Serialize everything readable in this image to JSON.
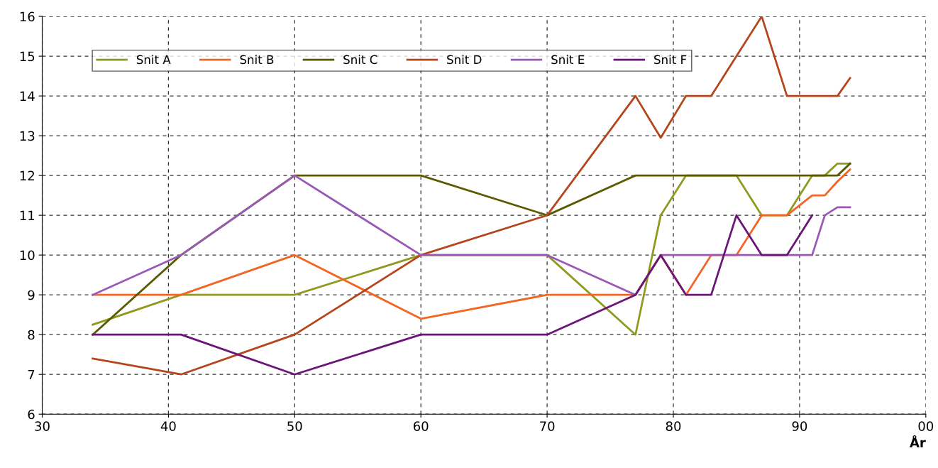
{
  "chart_data": {
    "type": "line",
    "xlabel": "År",
    "xlim": [
      "1930",
      "2000"
    ],
    "ylim": [
      6,
      16
    ],
    "xticks": [
      {
        "value": "1930",
        "label": "30"
      },
      {
        "value": "1940",
        "label": "40"
      },
      {
        "value": "1950",
        "label": "50"
      },
      {
        "value": "1960",
        "label": "60"
      },
      {
        "value": "1970",
        "label": "70"
      },
      {
        "value": "1980",
        "label": "80"
      },
      {
        "value": "1990",
        "label": "90"
      },
      {
        "value": "2000",
        "label": "00"
      }
    ],
    "yticks": [
      6,
      7,
      8,
      9,
      10,
      11,
      12,
      13,
      14,
      15,
      16
    ],
    "grid": true,
    "legend": "top left",
    "marker": "none",
    "line_style": "solid",
    "series": [
      {
        "name": "Snit A",
        "color": "#8f9a1e",
        "x": [
          "1934",
          "1941",
          "1950",
          "1960",
          "1970",
          "1977",
          "1979",
          "1981",
          "1985",
          "1987",
          "1989",
          "1991",
          "1992",
          "1993",
          "1994"
        ],
        "values": [
          8.25,
          9,
          9,
          10,
          10,
          8,
          11,
          12,
          12,
          11,
          11,
          12,
          12,
          12.3,
          12.3
        ]
      },
      {
        "name": "Snit B",
        "color": "#f26522",
        "x": [
          "1934",
          "1941",
          "1950",
          "1960",
          "1970",
          "1977",
          "1979",
          "1981",
          "1983",
          "1985",
          "1987",
          "1989",
          "1991",
          "1992",
          "1993",
          "1994"
        ],
        "values": [
          9,
          9,
          10,
          8.4,
          9,
          9,
          10,
          9,
          10,
          10,
          11,
          11,
          11.5,
          11.5,
          11.85,
          12.15
        ]
      },
      {
        "name": "Snit C",
        "color": "#5a5a00",
        "x": [
          "1934",
          "1941",
          "1950",
          "1960",
          "1970",
          "1977",
          "1993",
          "1994"
        ],
        "values": [
          8,
          10,
          12,
          12,
          11,
          12,
          12,
          12.3
        ]
      },
      {
        "name": "Snit D",
        "color": "#b5451b",
        "x": [
          "1934",
          "1941",
          "1950",
          "1960",
          "1970",
          "1977",
          "1979",
          "1981",
          "1983",
          "1985",
          "1987",
          "1989",
          "1993",
          "1994"
        ],
        "values": [
          7.4,
          7,
          8,
          10,
          11,
          14,
          12.95,
          14,
          14,
          15,
          16,
          14,
          14,
          14.45
        ]
      },
      {
        "name": "Snit E",
        "color": "#9b59b6",
        "x": [
          "1934",
          "1941",
          "1950",
          "1960",
          "1970",
          "1977",
          "1979",
          "1991",
          "1992",
          "1993",
          "1994"
        ],
        "values": [
          9,
          10,
          12,
          10,
          10,
          9,
          10,
          10,
          11,
          11.2,
          11.2
        ]
      },
      {
        "name": "Snit F",
        "color": "#6a1577",
        "x": [
          "1934",
          "1941",
          "1950",
          "1960",
          "1970",
          "1977",
          "1979",
          "1981",
          "1983",
          "1985",
          "1987",
          "1989",
          "1991"
        ],
        "values": [
          8,
          8,
          7,
          8,
          8,
          9,
          10,
          9,
          9,
          11,
          10,
          10,
          11
        ]
      }
    ]
  }
}
